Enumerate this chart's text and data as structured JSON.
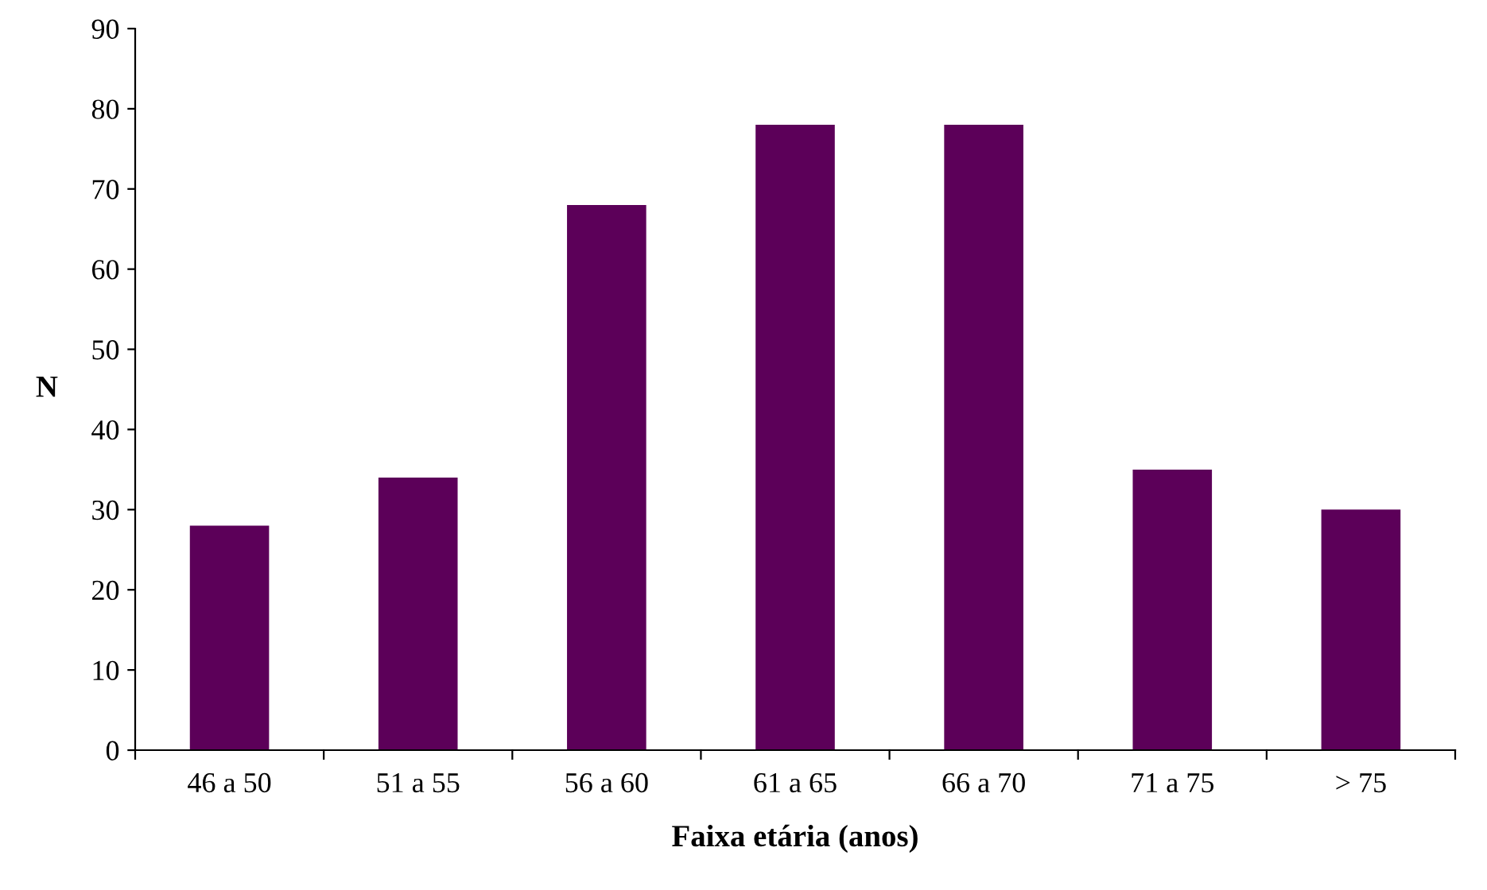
{
  "chart_data": {
    "type": "bar",
    "xlabel": "Faixa etária (anos)",
    "ylabel": "N",
    "categories": [
      "46 a 50",
      "51 a 55",
      "56 a 60",
      "61 a 65",
      "66 a 70",
      "71 a 75",
      "> 75"
    ],
    "values": [
      28,
      34,
      68,
      78,
      78,
      35,
      30
    ],
    "color": "#5c0059",
    "ylim": [
      0,
      90
    ],
    "yticks": [
      0,
      10,
      20,
      30,
      40,
      50,
      60,
      70,
      80,
      90
    ],
    "grid": false,
    "legend": false
  }
}
